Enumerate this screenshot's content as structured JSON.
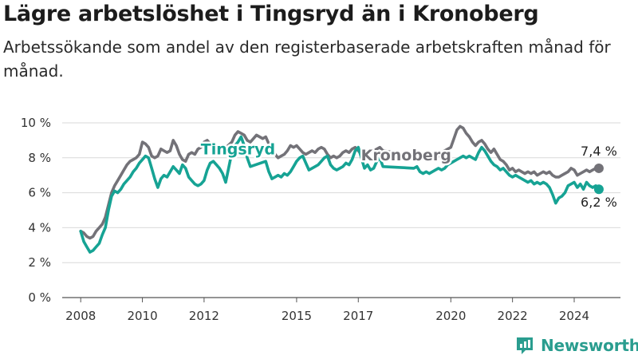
{
  "title": "Lägre arbetslöshet i Tingsryd än i Kronoberg",
  "subtitle": "Arbetssökande som andel av den registerbaserade arbetskraften månad för månad.",
  "brand": {
    "name": "Newsworthy",
    "icon": "bar-chart-logo-icon"
  },
  "colors": {
    "tingsryd": "#16a394",
    "kronoberg": "#737278",
    "grid": "#d9d9d9",
    "axis": "#555555"
  },
  "chart_data": {
    "type": "line",
    "y_ticks": [
      "0 %",
      "2 %",
      "4 %",
      "6 %",
      "8 %",
      "10 %"
    ],
    "x_ticks": [
      "2008",
      "2010",
      "2012",
      "2015",
      "2017",
      "2020",
      "2022",
      "2024"
    ],
    "ylim": [
      0,
      10
    ],
    "xlim": [
      2007.4,
      2025.5
    ],
    "grid": "horizontal",
    "series": [
      {
        "name": "Tingsryd",
        "color": "#16a394",
        "label_position": "inline",
        "end_label": "6,2 %",
        "points": [
          [
            2008.0,
            3.8
          ],
          [
            2008.1,
            3.2
          ],
          [
            2008.2,
            2.9
          ],
          [
            2008.3,
            2.6
          ],
          [
            2008.4,
            2.7
          ],
          [
            2008.5,
            2.9
          ],
          [
            2008.6,
            3.1
          ],
          [
            2008.7,
            3.6
          ],
          [
            2008.8,
            4.0
          ],
          [
            2008.9,
            5.0
          ],
          [
            2009.0,
            5.8
          ],
          [
            2009.1,
            6.1
          ],
          [
            2009.2,
            6.0
          ],
          [
            2009.3,
            6.2
          ],
          [
            2009.4,
            6.5
          ],
          [
            2009.5,
            6.7
          ],
          [
            2009.6,
            6.9
          ],
          [
            2009.7,
            7.2
          ],
          [
            2009.8,
            7.4
          ],
          [
            2009.9,
            7.7
          ],
          [
            2010.0,
            7.9
          ],
          [
            2010.1,
            8.1
          ],
          [
            2010.2,
            8.0
          ],
          [
            2010.3,
            7.4
          ],
          [
            2010.4,
            6.8
          ],
          [
            2010.5,
            6.3
          ],
          [
            2010.6,
            6.8
          ],
          [
            2010.7,
            7.0
          ],
          [
            2010.8,
            6.9
          ],
          [
            2010.9,
            7.2
          ],
          [
            2011.0,
            7.5
          ],
          [
            2011.1,
            7.3
          ],
          [
            2011.2,
            7.1
          ],
          [
            2011.3,
            7.6
          ],
          [
            2011.4,
            7.4
          ],
          [
            2011.5,
            6.9
          ],
          [
            2011.6,
            6.7
          ],
          [
            2011.7,
            6.5
          ],
          [
            2011.8,
            6.4
          ],
          [
            2011.9,
            6.5
          ],
          [
            2012.0,
            6.7
          ],
          [
            2012.1,
            7.3
          ],
          [
            2012.2,
            7.7
          ],
          [
            2012.3,
            7.8
          ],
          [
            2012.4,
            7.6
          ],
          [
            2012.5,
            7.4
          ],
          [
            2012.6,
            7.1
          ],
          [
            2012.7,
            6.6
          ],
          [
            2012.9,
            8.3
          ],
          [
            2013.0,
            8.7
          ],
          [
            2013.1,
            8.9
          ],
          [
            2013.2,
            9.2
          ],
          [
            2013.3,
            8.7
          ],
          [
            2013.4,
            8.0
          ],
          [
            2013.5,
            7.5
          ],
          [
            2014.0,
            7.8
          ],
          [
            2014.1,
            7.2
          ],
          [
            2014.2,
            6.8
          ],
          [
            2014.3,
            6.9
          ],
          [
            2014.4,
            7.0
          ],
          [
            2014.5,
            6.9
          ],
          [
            2014.6,
            7.1
          ],
          [
            2014.7,
            7.0
          ],
          [
            2014.8,
            7.2
          ],
          [
            2014.9,
            7.5
          ],
          [
            2015.0,
            7.8
          ],
          [
            2015.1,
            8.0
          ],
          [
            2015.2,
            8.1
          ],
          [
            2015.3,
            7.7
          ],
          [
            2015.4,
            7.3
          ],
          [
            2015.5,
            7.4
          ],
          [
            2015.6,
            7.5
          ],
          [
            2015.7,
            7.6
          ],
          [
            2015.8,
            7.8
          ],
          [
            2015.9,
            8.0
          ],
          [
            2016.0,
            8.1
          ],
          [
            2016.1,
            7.6
          ],
          [
            2016.2,
            7.4
          ],
          [
            2016.3,
            7.3
          ],
          [
            2016.4,
            7.4
          ],
          [
            2016.5,
            7.5
          ],
          [
            2016.6,
            7.7
          ],
          [
            2016.7,
            7.6
          ],
          [
            2016.8,
            7.9
          ],
          [
            2016.9,
            8.4
          ],
          [
            2017.0,
            8.6
          ],
          [
            2017.1,
            8.0
          ],
          [
            2017.2,
            7.4
          ],
          [
            2017.3,
            7.6
          ],
          [
            2017.4,
            7.3
          ],
          [
            2017.5,
            7.4
          ],
          [
            2017.6,
            7.8
          ],
          [
            2017.7,
            8.0
          ],
          [
            2017.8,
            7.5
          ],
          [
            2018.8,
            7.4
          ],
          [
            2018.9,
            7.5
          ],
          [
            2019.0,
            7.2
          ],
          [
            2019.1,
            7.1
          ],
          [
            2019.2,
            7.2
          ],
          [
            2019.3,
            7.1
          ],
          [
            2019.4,
            7.2
          ],
          [
            2019.5,
            7.3
          ],
          [
            2019.6,
            7.4
          ],
          [
            2019.7,
            7.3
          ],
          [
            2019.8,
            7.4
          ],
          [
            2019.9,
            7.6
          ],
          [
            2020.0,
            7.7
          ],
          [
            2020.1,
            7.8
          ],
          [
            2020.2,
            7.9
          ],
          [
            2020.3,
            8.0
          ],
          [
            2020.4,
            8.1
          ],
          [
            2020.5,
            8.0
          ],
          [
            2020.6,
            8.1
          ],
          [
            2020.7,
            8.0
          ],
          [
            2020.8,
            7.9
          ],
          [
            2020.9,
            8.3
          ],
          [
            2021.0,
            8.6
          ],
          [
            2021.1,
            8.4
          ],
          [
            2021.2,
            8.1
          ],
          [
            2021.3,
            7.8
          ],
          [
            2021.4,
            7.6
          ],
          [
            2021.5,
            7.5
          ],
          [
            2021.6,
            7.3
          ],
          [
            2021.7,
            7.4
          ],
          [
            2021.8,
            7.2
          ],
          [
            2021.9,
            7.0
          ],
          [
            2022.0,
            6.9
          ],
          [
            2022.1,
            7.0
          ],
          [
            2022.2,
            6.9
          ],
          [
            2022.3,
            6.8
          ],
          [
            2022.4,
            6.7
          ],
          [
            2022.5,
            6.6
          ],
          [
            2022.6,
            6.7
          ],
          [
            2022.7,
            6.5
          ],
          [
            2022.8,
            6.6
          ],
          [
            2022.9,
            6.5
          ],
          [
            2023.0,
            6.6
          ],
          [
            2023.1,
            6.5
          ],
          [
            2023.2,
            6.3
          ],
          [
            2023.3,
            5.9
          ],
          [
            2023.4,
            5.4
          ],
          [
            2023.5,
            5.7
          ],
          [
            2023.6,
            5.8
          ],
          [
            2023.7,
            6.0
          ],
          [
            2023.8,
            6.4
          ],
          [
            2023.9,
            6.5
          ],
          [
            2024.0,
            6.6
          ],
          [
            2024.1,
            6.3
          ],
          [
            2024.2,
            6.5
          ],
          [
            2024.3,
            6.2
          ],
          [
            2024.4,
            6.6
          ],
          [
            2024.5,
            6.4
          ],
          [
            2024.6,
            6.3
          ],
          [
            2024.7,
            6.4
          ],
          [
            2024.8,
            6.2
          ]
        ]
      },
      {
        "name": "Kronoberg",
        "color": "#737278",
        "label_position": "inline",
        "end_label": "7,4 %",
        "points": [
          [
            2008.0,
            3.8
          ],
          [
            2008.1,
            3.7
          ],
          [
            2008.2,
            3.5
          ],
          [
            2008.3,
            3.4
          ],
          [
            2008.4,
            3.5
          ],
          [
            2008.5,
            3.8
          ],
          [
            2008.6,
            4.0
          ],
          [
            2008.7,
            4.2
          ],
          [
            2008.8,
            4.6
          ],
          [
            2008.9,
            5.3
          ],
          [
            2009.0,
            6.0
          ],
          [
            2009.1,
            6.4
          ],
          [
            2009.2,
            6.7
          ],
          [
            2009.3,
            7.0
          ],
          [
            2009.4,
            7.3
          ],
          [
            2009.5,
            7.6
          ],
          [
            2009.6,
            7.8
          ],
          [
            2009.7,
            7.9
          ],
          [
            2009.8,
            8.0
          ],
          [
            2009.9,
            8.2
          ],
          [
            2010.0,
            8.9
          ],
          [
            2010.1,
            8.8
          ],
          [
            2010.2,
            8.6
          ],
          [
            2010.3,
            8.1
          ],
          [
            2010.4,
            8.0
          ],
          [
            2010.5,
            8.1
          ],
          [
            2010.6,
            8.5
          ],
          [
            2010.7,
            8.4
          ],
          [
            2010.8,
            8.3
          ],
          [
            2010.9,
            8.4
          ],
          [
            2011.0,
            9.0
          ],
          [
            2011.1,
            8.7
          ],
          [
            2011.2,
            8.2
          ],
          [
            2011.3,
            7.9
          ],
          [
            2011.4,
            7.8
          ],
          [
            2011.5,
            8.2
          ],
          [
            2011.6,
            8.3
          ],
          [
            2011.7,
            8.2
          ],
          [
            2011.8,
            8.5
          ],
          [
            2011.9,
            8.6
          ],
          [
            2012.0,
            8.9
          ],
          [
            2012.1,
            9.0
          ],
          [
            2012.2,
            8.8
          ],
          [
            2012.3,
            8.7
          ],
          [
            2012.4,
            8.5
          ],
          [
            2012.5,
            8.5
          ],
          [
            2012.6,
            8.4
          ],
          [
            2012.9,
            8.9
          ],
          [
            2013.0,
            9.3
          ],
          [
            2013.1,
            9.5
          ],
          [
            2013.2,
            9.4
          ],
          [
            2013.3,
            9.3
          ],
          [
            2013.4,
            9.0
          ],
          [
            2013.5,
            8.9
          ],
          [
            2013.6,
            9.1
          ],
          [
            2013.7,
            9.3
          ],
          [
            2013.8,
            9.2
          ],
          [
            2013.9,
            9.1
          ],
          [
            2014.0,
            9.2
          ],
          [
            2014.1,
            8.8
          ],
          [
            2014.2,
            8.5
          ],
          [
            2014.3,
            8.2
          ],
          [
            2014.4,
            8.0
          ],
          [
            2014.5,
            8.1
          ],
          [
            2014.6,
            8.2
          ],
          [
            2014.7,
            8.4
          ],
          [
            2014.8,
            8.7
          ],
          [
            2014.9,
            8.6
          ],
          [
            2015.0,
            8.7
          ],
          [
            2015.1,
            8.5
          ],
          [
            2015.2,
            8.3
          ],
          [
            2015.3,
            8.2
          ],
          [
            2015.4,
            8.3
          ],
          [
            2015.5,
            8.4
          ],
          [
            2015.6,
            8.3
          ],
          [
            2015.7,
            8.5
          ],
          [
            2015.8,
            8.6
          ],
          [
            2015.9,
            8.5
          ],
          [
            2016.0,
            8.2
          ],
          [
            2016.1,
            8.0
          ],
          [
            2016.2,
            8.1
          ],
          [
            2016.3,
            8.0
          ],
          [
            2016.4,
            8.1
          ],
          [
            2016.5,
            8.3
          ],
          [
            2016.6,
            8.4
          ],
          [
            2016.7,
            8.3
          ],
          [
            2016.8,
            8.5
          ],
          [
            2016.9,
            8.6
          ],
          [
            2017.0,
            8.4
          ],
          [
            2017.1,
            8.2
          ],
          [
            2017.2,
            8.3
          ],
          [
            2017.3,
            8.4
          ],
          [
            2017.4,
            8.5
          ],
          [
            2017.5,
            8.4
          ],
          [
            2017.6,
            8.5
          ],
          [
            2017.7,
            8.6
          ],
          [
            2017.8,
            8.4
          ],
          [
            2019.3,
            8.0
          ],
          [
            2019.4,
            8.1
          ],
          [
            2019.5,
            8.2
          ],
          [
            2019.6,
            8.1
          ],
          [
            2019.7,
            8.3
          ],
          [
            2019.8,
            8.4
          ],
          [
            2019.9,
            8.5
          ],
          [
            2020.0,
            8.6
          ],
          [
            2020.1,
            9.1
          ],
          [
            2020.2,
            9.6
          ],
          [
            2020.3,
            9.8
          ],
          [
            2020.4,
            9.7
          ],
          [
            2020.5,
            9.4
          ],
          [
            2020.6,
            9.2
          ],
          [
            2020.7,
            8.9
          ],
          [
            2020.8,
            8.7
          ],
          [
            2020.9,
            8.9
          ],
          [
            2021.0,
            9.0
          ],
          [
            2021.1,
            8.8
          ],
          [
            2021.2,
            8.5
          ],
          [
            2021.3,
            8.3
          ],
          [
            2021.4,
            8.5
          ],
          [
            2021.5,
            8.2
          ],
          [
            2021.6,
            7.9
          ],
          [
            2021.7,
            7.8
          ],
          [
            2021.8,
            7.6
          ],
          [
            2021.9,
            7.3
          ],
          [
            2022.0,
            7.4
          ],
          [
            2022.1,
            7.2
          ],
          [
            2022.2,
            7.3
          ],
          [
            2022.3,
            7.2
          ],
          [
            2022.4,
            7.1
          ],
          [
            2022.5,
            7.2
          ],
          [
            2022.6,
            7.1
          ],
          [
            2022.7,
            7.2
          ],
          [
            2022.8,
            7.0
          ],
          [
            2022.9,
            7.1
          ],
          [
            2023.0,
            7.2
          ],
          [
            2023.1,
            7.1
          ],
          [
            2023.2,
            7.2
          ],
          [
            2023.3,
            7.0
          ],
          [
            2023.4,
            6.9
          ],
          [
            2023.5,
            6.9
          ],
          [
            2023.6,
            7.0
          ],
          [
            2023.7,
            7.1
          ],
          [
            2023.8,
            7.2
          ],
          [
            2023.9,
            7.4
          ],
          [
            2024.0,
            7.3
          ],
          [
            2024.1,
            7.0
          ],
          [
            2024.2,
            7.1
          ],
          [
            2024.3,
            7.2
          ],
          [
            2024.4,
            7.3
          ],
          [
            2024.5,
            7.2
          ],
          [
            2024.6,
            7.3
          ],
          [
            2024.7,
            7.4
          ],
          [
            2024.8,
            7.4
          ]
        ]
      }
    ]
  }
}
